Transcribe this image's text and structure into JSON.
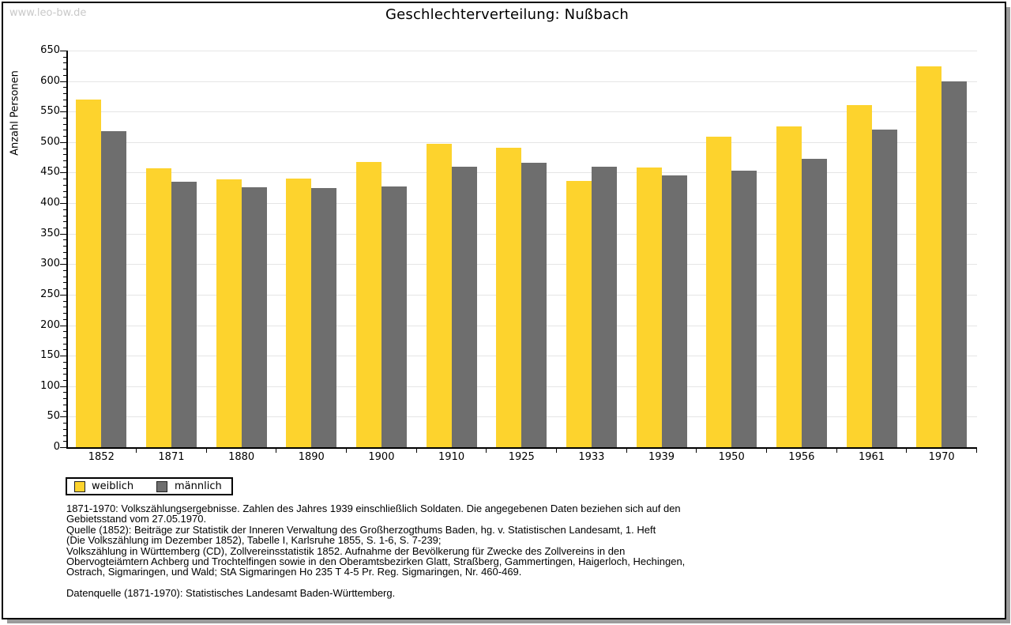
{
  "watermark": "www.leo-bw.de",
  "title": "Geschlechterverteilung: Nußbach",
  "chart_data": {
    "type": "bar",
    "title": "Geschlechterverteilung: Nußbach",
    "xlabel": "",
    "ylabel": "Anzahl Personen",
    "ylim": [
      0,
      650
    ],
    "ytick_step": 50,
    "ytick_minor_step": 10,
    "grid": true,
    "legend_position": "bottom-left",
    "categories": [
      "1852",
      "1871",
      "1880",
      "1890",
      "1900",
      "1910",
      "1925",
      "1933",
      "1939",
      "1950",
      "1956",
      "1961",
      "1970"
    ],
    "series": [
      {
        "name": "weiblich",
        "color": "#FDD32D",
        "values": [
          570,
          457,
          439,
          440,
          468,
          497,
          491,
          436,
          458,
          509,
          526,
          561,
          624
        ]
      },
      {
        "name": "männlich",
        "color": "#6E6E6E",
        "values": [
          518,
          435,
          426,
          425,
          427,
          460,
          466,
          460,
          446,
          453,
          473,
          520,
          600
        ]
      }
    ]
  },
  "footer": {
    "lines": [
      "1871-1970: Volkszählungsergebnisse. Zahlen des Jahres 1939 einschließlich Soldaten. Die angegebenen Daten beziehen sich auf den",
      "Gebietsstand vom 27.05.1970.",
      "Quelle (1852): Beiträge zur Statistik der Inneren Verwaltung des Großherzogthums Baden, hg. v. Statistischen Landesamt, 1. Heft",
      "(Die Volkszählung im Dezember 1852), Tabelle I, Karlsruhe 1855, S. 1-6, S. 7-239;",
      "Volkszählung in Württemberg (CD), Zollvereinsstatistik 1852. Aufnahme der Bevölkerung für Zwecke des Zollvereins in den",
      "Obervogteiämtern Achberg und Trochtelfingen sowie in den Oberamtsbezirken Glatt, Straßberg, Gammertingen, Haigerloch, Hechingen,",
      "Ostrach, Sigmaringen, und Wald; StA Sigmaringen Ho 235 T 4-5 Pr. Reg. Sigmaringen, Nr. 460-469."
    ],
    "datasource": "Datenquelle (1871-1970): Statistisches Landesamt Baden-Württemberg."
  },
  "colors": {
    "female_bar": "#FDD32D",
    "male_bar": "#6E6E6E",
    "gridline": "#E5E5E5",
    "watermark": "#C9C9C9",
    "frame_shadow": "#9B9B9B"
  }
}
